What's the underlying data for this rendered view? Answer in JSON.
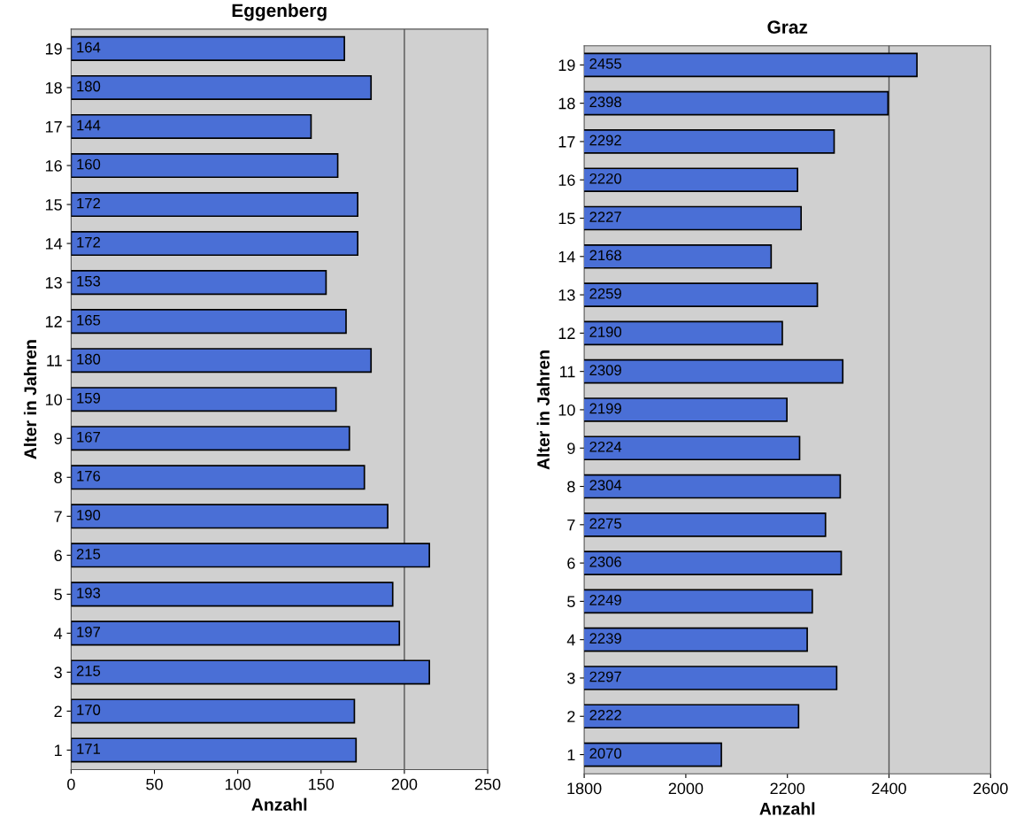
{
  "chart_data": [
    {
      "type": "bar",
      "orientation": "horizontal",
      "title": "Eggenberg",
      "xlabel": "Anzahl",
      "ylabel": "Alter in Jahren",
      "categories": [
        "19",
        "18",
        "17",
        "16",
        "15",
        "14",
        "13",
        "12",
        "11",
        "10",
        "9",
        "8",
        "7",
        "6",
        "5",
        "4",
        "3",
        "2",
        "1"
      ],
      "values": [
        164,
        180,
        144,
        160,
        172,
        172,
        153,
        165,
        180,
        159,
        167,
        176,
        190,
        215,
        193,
        197,
        215,
        170,
        171
      ],
      "color": "#4a6fd6",
      "xlim": [
        0,
        250
      ],
      "xticks": [
        0,
        50,
        100,
        150,
        200,
        250
      ],
      "data_labels": true,
      "ref_lines": [
        {
          "axis": "x",
          "value": 200,
          "color": "#555555"
        }
      ]
    },
    {
      "type": "bar",
      "orientation": "horizontal",
      "title": "Graz",
      "xlabel": "Anzahl",
      "ylabel": "Alter in Jahren",
      "categories": [
        "19",
        "18",
        "17",
        "16",
        "15",
        "14",
        "13",
        "12",
        "11",
        "10",
        "9",
        "8",
        "7",
        "6",
        "5",
        "4",
        "3",
        "2",
        "1"
      ],
      "values": [
        2455,
        2398,
        2292,
        2220,
        2227,
        2168,
        2259,
        2190,
        2309,
        2199,
        2224,
        2304,
        2275,
        2306,
        2249,
        2239,
        2297,
        2222,
        2070
      ],
      "color": "#4a6fd6",
      "xlim": [
        1800,
        2600
      ],
      "xticks": [
        1800,
        2000,
        2200,
        2400,
        2600
      ],
      "data_labels": true,
      "ref_lines": [
        {
          "axis": "x",
          "value": 2400,
          "color": "#555555"
        }
      ]
    }
  ]
}
